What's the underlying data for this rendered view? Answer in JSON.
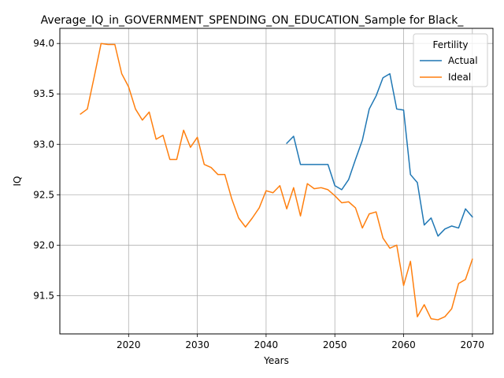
{
  "chart_data": {
    "type": "line",
    "title": "Average_IQ_in_GOVERNMENT_SPENDING_ON_EDUCATION_Sample for Black_",
    "xlabel": "Years",
    "ylabel": "IQ",
    "xlim": [
      2010,
      2073
    ],
    "ylim": [
      91.12,
      94.15
    ],
    "xticks": [
      2020,
      2030,
      2040,
      2050,
      2060,
      2070
    ],
    "yticks": [
      91.5,
      92.0,
      92.5,
      93.0,
      93.5,
      94.0
    ],
    "xtick_labels": [
      "2020",
      "2030",
      "2040",
      "2050",
      "2060",
      "2070"
    ],
    "ytick_labels": [
      "91.5",
      "92.0",
      "92.5",
      "93.0",
      "93.5",
      "94.0"
    ],
    "grid": true,
    "legend": {
      "title": "Fertility",
      "position": "top-right"
    },
    "series": [
      {
        "name": "Actual",
        "color": "#1f77b4",
        "x": [
          2043,
          2044,
          2045,
          2046,
          2047,
          2048,
          2049,
          2050,
          2051,
          2052,
          2053,
          2054,
          2055,
          2056,
          2057,
          2058,
          2059,
          2060,
          2061,
          2062,
          2063,
          2064,
          2065,
          2066,
          2067,
          2068,
          2069,
          2070
        ],
        "y": [
          93.01,
          93.08,
          92.8,
          92.8,
          92.8,
          92.8,
          92.8,
          92.59,
          92.55,
          92.65,
          92.85,
          93.04,
          93.35,
          93.48,
          93.66,
          93.7,
          93.35,
          93.34,
          92.7,
          92.62,
          92.2,
          92.27,
          92.09,
          92.16,
          92.19,
          92.17,
          92.36,
          92.28
        ]
      },
      {
        "name": "Ideal",
        "color": "#ff7f0e",
        "x": [
          2013,
          2014,
          2015,
          2016,
          2017,
          2018,
          2019,
          2020,
          2021,
          2022,
          2023,
          2024,
          2025,
          2026,
          2027,
          2028,
          2029,
          2030,
          2031,
          2032,
          2033,
          2034,
          2035,
          2036,
          2037,
          2038,
          2039,
          2040,
          2041,
          2042,
          2043,
          2044,
          2045,
          2046,
          2047,
          2048,
          2049,
          2050,
          2051,
          2052,
          2053,
          2054,
          2055,
          2056,
          2057,
          2058,
          2059,
          2060,
          2061,
          2062,
          2063,
          2064,
          2065,
          2066,
          2067,
          2068,
          2069,
          2070
        ],
        "y": [
          93.3,
          93.35,
          93.67,
          94.0,
          93.99,
          93.99,
          93.7,
          93.57,
          93.35,
          93.24,
          93.32,
          93.05,
          93.09,
          92.85,
          92.85,
          93.14,
          92.97,
          93.07,
          92.8,
          92.77,
          92.7,
          92.7,
          92.46,
          92.27,
          92.18,
          92.27,
          92.37,
          92.54,
          92.52,
          92.59,
          92.36,
          92.57,
          92.29,
          92.61,
          92.56,
          92.57,
          92.55,
          92.49,
          92.42,
          92.43,
          92.37,
          92.17,
          92.31,
          92.33,
          92.07,
          91.97,
          92.0,
          91.6,
          91.84,
          91.29,
          91.41,
          91.27,
          91.26,
          91.29,
          91.37,
          91.62,
          91.66,
          91.86
        ]
      }
    ]
  }
}
